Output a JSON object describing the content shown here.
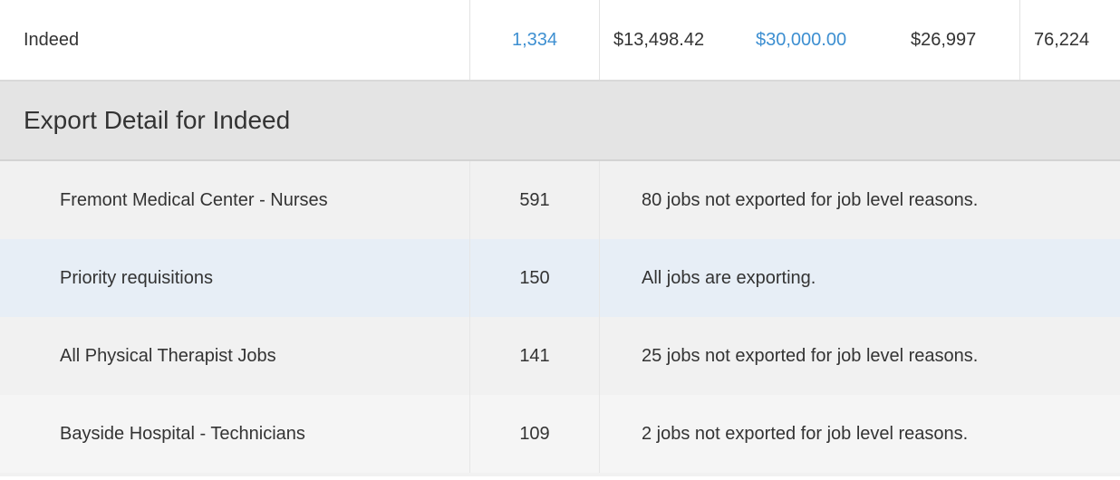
{
  "summary": {
    "source_name": "Indeed",
    "jobs_count": "1,334",
    "spend": "$13,498.42",
    "budget": "$30,000.00",
    "projected": "$26,997",
    "clicks": "76,224"
  },
  "export_detail": {
    "title": "Export Detail for Indeed",
    "rows": [
      {
        "name": "Fremont Medical Center - Nurses",
        "count": "591",
        "status": "80 jobs not exported for job level reasons."
      },
      {
        "name": "Priority requisitions",
        "count": "150",
        "status": "All jobs are exporting."
      },
      {
        "name": "All Physical Therapist Jobs",
        "count": "141",
        "status": "25 jobs not exported for job level reasons."
      },
      {
        "name": "Bayside Hospital - Technicians",
        "count": "109",
        "status": "2 jobs not exported for job level reasons."
      }
    ]
  },
  "colors": {
    "link": "#3d8fd1",
    "header_bg": "#e4e4e4",
    "highlight_row": "#e7eef6"
  }
}
